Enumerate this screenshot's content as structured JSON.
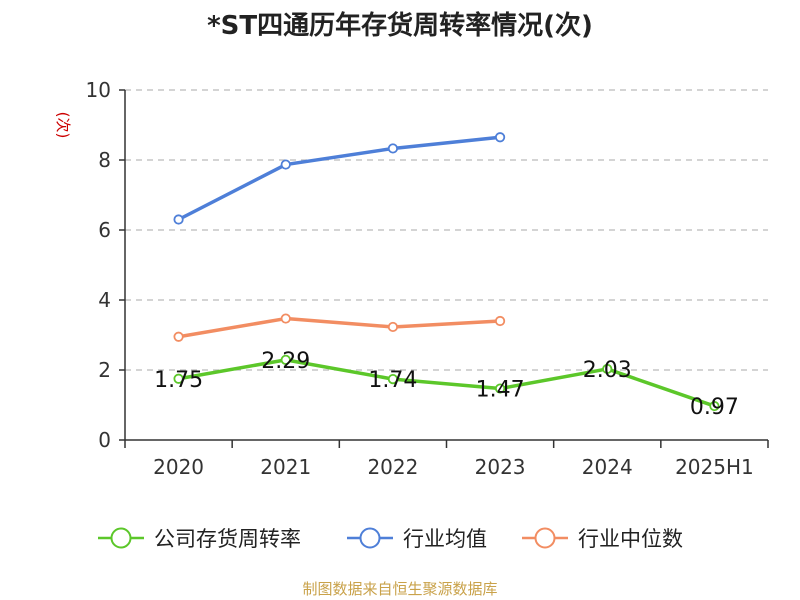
{
  "chart_data": {
    "type": "line",
    "title": "*ST四通历年存货周转率情况(次)",
    "ylabel": "(次)",
    "categories": [
      "2020",
      "2021",
      "2022",
      "2023",
      "2024",
      "2025H1"
    ],
    "ylim": [
      0,
      10
    ],
    "yticks": [
      0,
      2,
      4,
      6,
      8,
      10
    ],
    "grid": true,
    "legend_position": "bottom",
    "series": [
      {
        "name": "公司存货周转率",
        "color": "#5cc72a",
        "values": [
          1.75,
          2.29,
          1.74,
          1.47,
          2.03,
          0.97
        ],
        "labels": [
          "1.75",
          "2.29",
          "1.74",
          "1.47",
          "2.03",
          "0.97"
        ],
        "show_labels": true
      },
      {
        "name": "行业均值",
        "color": "#4e7fd8",
        "values": [
          6.3,
          7.87,
          8.33,
          8.65,
          null,
          null
        ],
        "show_labels": false
      },
      {
        "name": "行业中位数",
        "color": "#f28d62",
        "values": [
          2.95,
          3.47,
          3.23,
          3.4,
          null,
          null
        ],
        "show_labels": false
      }
    ]
  },
  "source": "制图数据来自恒生聚源数据库",
  "colors": {
    "title": "#222222",
    "axis": "#333333",
    "grid": "#bbbbbb",
    "ylabel": "#cc0000",
    "source": "#c9a24a"
  }
}
